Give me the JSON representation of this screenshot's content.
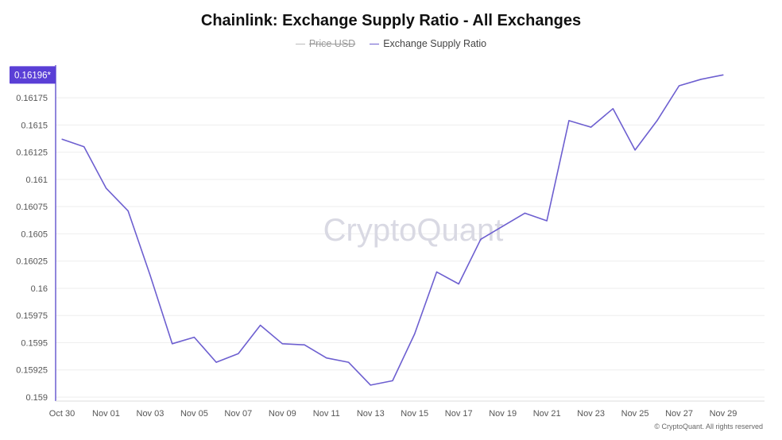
{
  "chart_data": {
    "type": "line",
    "title": "Chainlink: Exchange Supply Ratio - All Exchanges",
    "legend": [
      {
        "name": "Price USD",
        "visible": false,
        "color": "#bbbbbb"
      },
      {
        "name": "Exchange Supply Ratio",
        "visible": true,
        "color": "#6d5fd0"
      }
    ],
    "legend_position": "top-center",
    "x_tick_labels": [
      "Oct 30",
      "Nov 01",
      "Nov 03",
      "Nov 05",
      "Nov 07",
      "Nov 09",
      "Nov 11",
      "Nov 13",
      "Nov 15",
      "Nov 17",
      "Nov 19",
      "Nov 21",
      "Nov 23",
      "Nov 25",
      "Nov 27",
      "Nov 29"
    ],
    "y_ticks": [
      0.159,
      0.15925,
      0.1595,
      0.15975,
      0.16,
      0.16025,
      0.1605,
      0.16075,
      0.161,
      0.16125,
      0.1615,
      0.16175
    ],
    "y_tick_labels": [
      "0.159",
      "0.15925",
      "0.1595",
      "0.15975",
      "0.16",
      "0.16025",
      "0.1605",
      "0.16075",
      "0.161",
      "0.16125",
      "0.1615",
      "0.16175"
    ],
    "ylim": [
      0.159,
      0.16205
    ],
    "grid": true,
    "current_value_label": "0.16196*",
    "series": [
      {
        "name": "Exchange Supply Ratio",
        "color": "#6d5fd0",
        "x": [
          "Oct 30",
          "Oct 31",
          "Nov 01",
          "Nov 02",
          "Nov 03",
          "Nov 04",
          "Nov 05",
          "Nov 06",
          "Nov 07",
          "Nov 08",
          "Nov 09",
          "Nov 10",
          "Nov 11",
          "Nov 12",
          "Nov 13",
          "Nov 14",
          "Nov 15",
          "Nov 16",
          "Nov 17",
          "Nov 18",
          "Nov 19",
          "Nov 20",
          "Nov 21",
          "Nov 22",
          "Nov 23",
          "Nov 24",
          "Nov 25",
          "Nov 26",
          "Nov 27",
          "Nov 28",
          "Nov 29"
        ],
        "values": [
          0.16137,
          0.1613,
          0.16092,
          0.16071,
          0.16012,
          0.15949,
          0.15955,
          0.15932,
          0.1594,
          0.15966,
          0.15949,
          0.15948,
          0.15936,
          0.15932,
          0.15911,
          0.15915,
          0.15958,
          0.16015,
          0.16004,
          0.16045,
          0.16057,
          0.16069,
          0.16062,
          0.16154,
          0.16148,
          0.16165,
          0.16127,
          0.16154,
          0.16186,
          0.16192,
          0.16196
        ]
      }
    ]
  },
  "watermark": "CryptoQuant",
  "copyright": "© CryptoQuant. All rights reserved"
}
